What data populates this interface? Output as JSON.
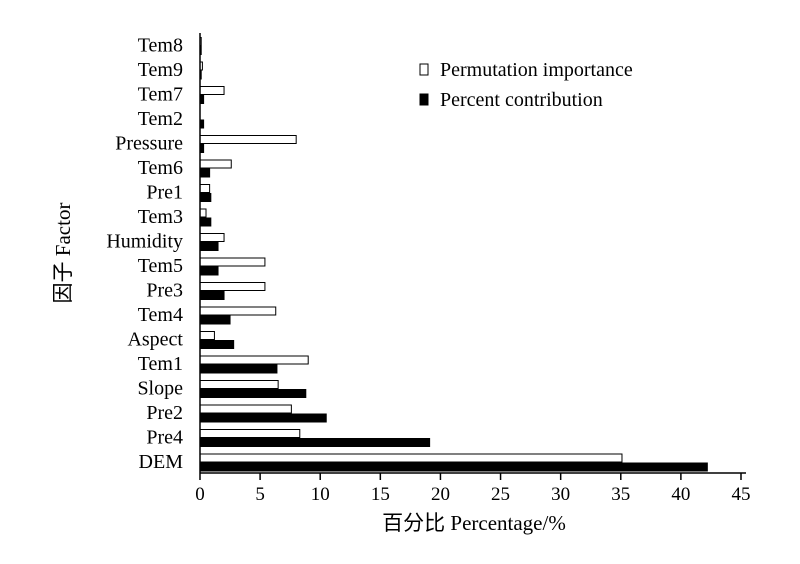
{
  "chart_data": {
    "type": "bar",
    "orientation": "horizontal",
    "categories": [
      "DEM",
      "Pre4",
      "Pre2",
      "Slope",
      "Tem1",
      "Aspect",
      "Tem4",
      "Pre3",
      "Tem5",
      "Humidity",
      "Tem3",
      "Pre1",
      "Tem6",
      "Pressure",
      "Tem2",
      "Tem7",
      "Tem9",
      "Tem8"
    ],
    "series": [
      {
        "name": "Permutation importance",
        "color": "#ffffff",
        "values": [
          35.1,
          8.3,
          7.6,
          6.5,
          9.0,
          1.2,
          6.3,
          5.4,
          5.4,
          2.0,
          0.5,
          0.8,
          2.6,
          8.0,
          0.0,
          2.0,
          0.2,
          0.1
        ]
      },
      {
        "name": "Percent contribution",
        "color": "#000000",
        "values": [
          42.2,
          19.1,
          10.5,
          8.8,
          6.4,
          2.8,
          2.5,
          2.0,
          1.5,
          1.5,
          0.9,
          0.9,
          0.8,
          0.3,
          0.3,
          0.3,
          0.1,
          0.1
        ]
      }
    ],
    "xlabel": "百分比 Percentage/%",
    "ylabel": "因子 Factor",
    "xlim": [
      0,
      45
    ],
    "xticks": [
      "0",
      "5",
      "10",
      "15",
      "20",
      "25",
      "30",
      "35",
      "40",
      "45"
    ],
    "grid": false,
    "legend_position": "top-right"
  }
}
